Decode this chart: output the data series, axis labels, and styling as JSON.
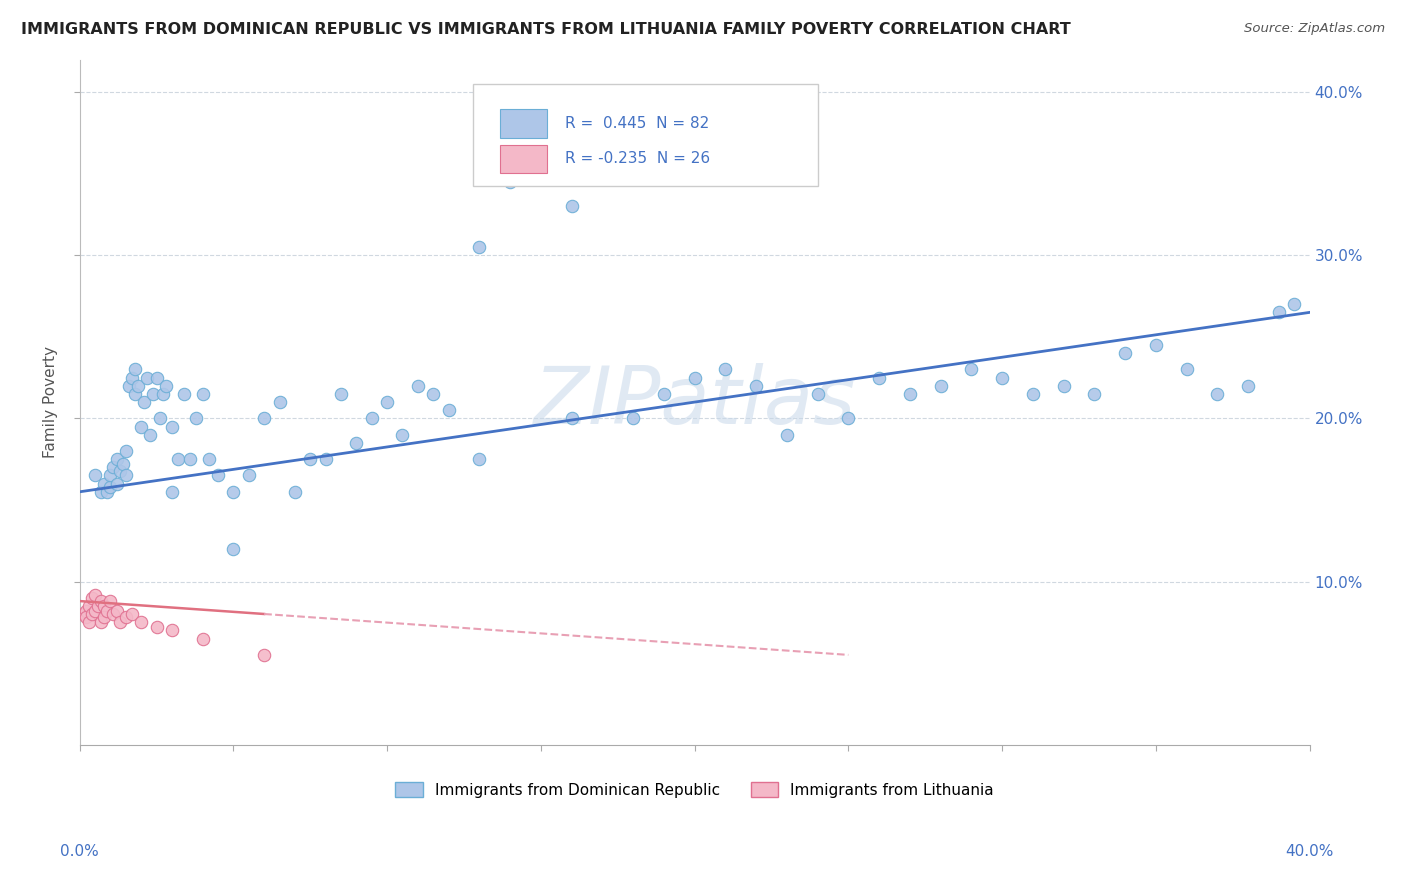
{
  "title": "IMMIGRANTS FROM DOMINICAN REPUBLIC VS IMMIGRANTS FROM LITHUANIA FAMILY POVERTY CORRELATION CHART",
  "source": "Source: ZipAtlas.com",
  "ylabel": "Family Poverty",
  "xlim": [
    0.0,
    0.4
  ],
  "ylim": [
    0.0,
    0.42
  ],
  "dom_color_fill": "#aec6e8",
  "dom_color_edge": "#6baed6",
  "lit_color_fill": "#f4b8c8",
  "lit_color_edge": "#e07090",
  "trend_dom_color": "#4472c4",
  "trend_lit_color": "#e8a0b0",
  "watermark": "ZIPatlas",
  "watermark_color": "#c8d8ea",
  "grid_color": "#d0d8e0",
  "dom_x": [
    0.005,
    0.007,
    0.008,
    0.009,
    0.01,
    0.01,
    0.011,
    0.012,
    0.012,
    0.013,
    0.014,
    0.015,
    0.015,
    0.016,
    0.017,
    0.018,
    0.018,
    0.019,
    0.02,
    0.021,
    0.022,
    0.023,
    0.024,
    0.025,
    0.026,
    0.027,
    0.028,
    0.03,
    0.032,
    0.034,
    0.036,
    0.038,
    0.04,
    0.042,
    0.045,
    0.05,
    0.055,
    0.06,
    0.065,
    0.07,
    0.075,
    0.08,
    0.085,
    0.09,
    0.095,
    0.1,
    0.105,
    0.11,
    0.115,
    0.12,
    0.13,
    0.14,
    0.15,
    0.16,
    0.17,
    0.18,
    0.19,
    0.2,
    0.21,
    0.22,
    0.23,
    0.24,
    0.25,
    0.26,
    0.27,
    0.28,
    0.29,
    0.3,
    0.31,
    0.32,
    0.33,
    0.34,
    0.35,
    0.36,
    0.37,
    0.38,
    0.39,
    0.395,
    0.13,
    0.16,
    0.05,
    0.03
  ],
  "dom_y": [
    0.165,
    0.155,
    0.16,
    0.155,
    0.158,
    0.165,
    0.17,
    0.16,
    0.175,
    0.168,
    0.172,
    0.165,
    0.18,
    0.22,
    0.225,
    0.215,
    0.23,
    0.22,
    0.195,
    0.21,
    0.225,
    0.19,
    0.215,
    0.225,
    0.2,
    0.215,
    0.22,
    0.195,
    0.175,
    0.215,
    0.175,
    0.2,
    0.215,
    0.175,
    0.165,
    0.12,
    0.165,
    0.2,
    0.21,
    0.155,
    0.175,
    0.175,
    0.215,
    0.185,
    0.2,
    0.21,
    0.19,
    0.22,
    0.215,
    0.205,
    0.305,
    0.345,
    0.35,
    0.33,
    0.355,
    0.2,
    0.215,
    0.225,
    0.23,
    0.22,
    0.19,
    0.215,
    0.2,
    0.225,
    0.215,
    0.22,
    0.23,
    0.225,
    0.215,
    0.22,
    0.215,
    0.24,
    0.245,
    0.23,
    0.215,
    0.22,
    0.265,
    0.27,
    0.175,
    0.2,
    0.155,
    0.155
  ],
  "lit_x": [
    0.001,
    0.002,
    0.002,
    0.003,
    0.003,
    0.004,
    0.004,
    0.005,
    0.005,
    0.006,
    0.007,
    0.007,
    0.008,
    0.008,
    0.009,
    0.01,
    0.011,
    0.012,
    0.013,
    0.015,
    0.017,
    0.02,
    0.025,
    0.03,
    0.04,
    0.06
  ],
  "lit_y": [
    0.08,
    0.082,
    0.078,
    0.085,
    0.075,
    0.09,
    0.08,
    0.092,
    0.082,
    0.085,
    0.088,
    0.075,
    0.085,
    0.078,
    0.082,
    0.088,
    0.08,
    0.082,
    0.075,
    0.078,
    0.08,
    0.075,
    0.072,
    0.07,
    0.065,
    0.055
  ],
  "trend_dom_x0": 0.0,
  "trend_dom_y0": 0.155,
  "trend_dom_x1": 0.4,
  "trend_dom_y1": 0.265,
  "trend_lit_x0": 0.0,
  "trend_lit_y0": 0.088,
  "trend_lit_x1": 0.25,
  "trend_lit_y1": 0.055
}
